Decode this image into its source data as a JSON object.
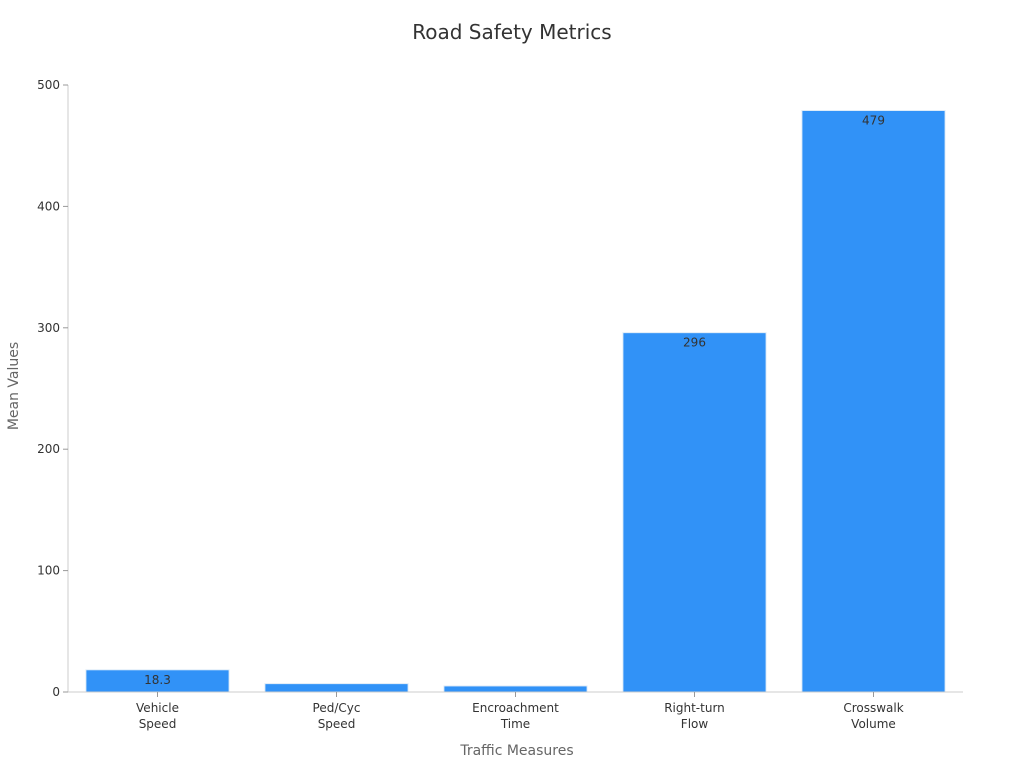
{
  "chart_data": {
    "type": "bar",
    "title": "Road Safety Metrics",
    "xlabel": "Traffic Measures",
    "ylabel": "Mean Values",
    "categories": [
      [
        "Vehicle",
        "Speed"
      ],
      [
        "Ped/Cyc",
        "Speed"
      ],
      [
        "Encroachment",
        "Time"
      ],
      [
        "Right-turn",
        "Flow"
      ],
      [
        "Crosswalk",
        "Volume"
      ]
    ],
    "values": [
      18.3,
      6.9,
      5.0,
      296,
      479
    ],
    "data_labels": [
      "18.3",
      "",
      "",
      "296",
      "479"
    ],
    "yticks": [
      "0",
      "100",
      "200",
      "300",
      "400",
      "500"
    ],
    "ylim": [
      0,
      500
    ],
    "grid": false,
    "legend": "none",
    "bar_color": "#3192f7",
    "bar_edge_color": "#e0ecf8"
  }
}
